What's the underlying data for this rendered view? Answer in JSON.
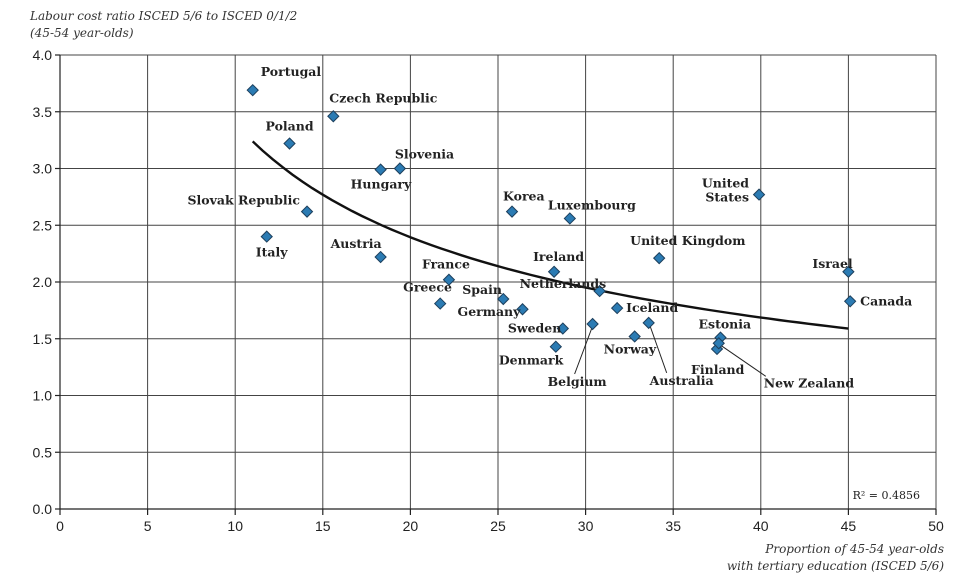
{
  "chart_data": {
    "type": "scatter",
    "ylabel_lines": [
      "Labour cost ratio ISCED 5/6 to ISCED 0/1/2",
      "(45-54 year-olds)"
    ],
    "xlabel_lines": [
      "Proportion of 45-54 year-olds",
      "with tertiary education (ISCED 5/6)"
    ],
    "xlim": [
      0,
      50
    ],
    "ylim": [
      0,
      4
    ],
    "xticks": [
      "0",
      "5",
      "10",
      "15",
      "20",
      "25",
      "30",
      "35",
      "40",
      "45",
      "50"
    ],
    "yticks": [
      "0.0",
      "0.5",
      "1.0",
      "1.5",
      "2.0",
      "2.5",
      "3.0",
      "3.5",
      "4.0"
    ],
    "grid": true,
    "r2_label": "R² = 0.4856",
    "trend": {
      "type": "power",
      "points": [
        [
          11,
          3.13
        ],
        [
          15,
          2.78
        ],
        [
          20,
          2.45
        ],
        [
          25,
          2.2
        ],
        [
          30,
          1.99
        ],
        [
          35,
          1.82
        ],
        [
          40,
          1.67
        ],
        [
          45,
          1.53
        ]
      ]
    },
    "points": [
      {
        "label": "Portugal",
        "x": 11.0,
        "y": 3.69
      },
      {
        "label": "Czech Republic",
        "x": 15.6,
        "y": 3.46
      },
      {
        "label": "Poland",
        "x": 13.1,
        "y": 3.22
      },
      {
        "label": "Hungary",
        "x": 18.3,
        "y": 2.99
      },
      {
        "label": "Slovenia",
        "x": 19.4,
        "y": 3.0
      },
      {
        "label": "Slovak Republic",
        "x": 14.1,
        "y": 2.62
      },
      {
        "label": "Italy",
        "x": 11.8,
        "y": 2.4
      },
      {
        "label": "Austria",
        "x": 18.3,
        "y": 2.22
      },
      {
        "label": "France",
        "x": 22.2,
        "y": 2.02
      },
      {
        "label": "Greece",
        "x": 21.7,
        "y": 1.81
      },
      {
        "label": "Korea",
        "x": 25.8,
        "y": 2.62
      },
      {
        "label": "Luxembourg",
        "x": 29.1,
        "y": 2.56
      },
      {
        "label": "Spain",
        "x": 25.3,
        "y": 1.85
      },
      {
        "label": "Germany",
        "x": 26.4,
        "y": 1.76
      },
      {
        "label": "Ireland",
        "x": 28.2,
        "y": 2.09
      },
      {
        "label": "Netherlands",
        "x": 30.8,
        "y": 1.92
      },
      {
        "label": "Sweden",
        "x": 28.7,
        "y": 1.59
      },
      {
        "label": "Denmark",
        "x": 28.3,
        "y": 1.43
      },
      {
        "label": "Belgium",
        "x": 30.4,
        "y": 1.63
      },
      {
        "label": "Iceland",
        "x": 31.8,
        "y": 1.77
      },
      {
        "label": "Norway",
        "x": 32.8,
        "y": 1.52
      },
      {
        "label": "Australia",
        "x": 33.6,
        "y": 1.64
      },
      {
        "label": "United Kingdom",
        "x": 34.2,
        "y": 2.21
      },
      {
        "label": "Estonia",
        "x": 37.7,
        "y": 1.51
      },
      {
        "label": "Finland",
        "x": 37.5,
        "y": 1.41
      },
      {
        "label": "New Zealand",
        "x": 37.6,
        "y": 1.46
      },
      {
        "label": "United States",
        "x": 39.9,
        "y": 2.77
      },
      {
        "label": "Israel",
        "x": 45.0,
        "y": 2.09
      },
      {
        "label": "Canada",
        "x": 45.1,
        "y": 1.83
      }
    ]
  }
}
